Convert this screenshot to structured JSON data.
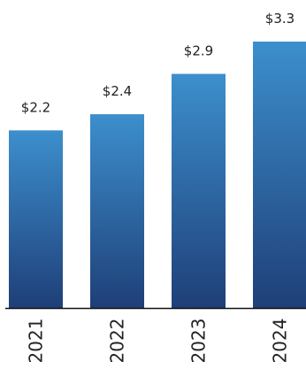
{
  "chart_data": {
    "type": "bar",
    "categories": [
      "2021",
      "2022",
      "2023",
      "2024"
    ],
    "values": [
      2.2,
      2.4,
      2.9,
      3.3
    ],
    "value_labels": [
      "$2.2",
      "$2.4",
      "$2.9",
      "$3.3"
    ],
    "title": "",
    "xlabel": "",
    "ylabel": "",
    "ylim": [
      0,
      3.3
    ],
    "grid": false,
    "legend": "none",
    "tick_label_orientation": "vertical",
    "colors": {
      "bar_top": "#3c8fcd",
      "bar_bottom": "#1f3f78",
      "baseline": "#111111",
      "text": "#222222"
    }
  }
}
